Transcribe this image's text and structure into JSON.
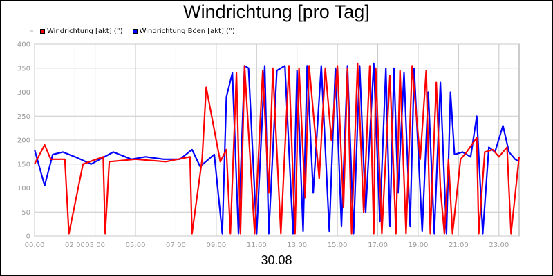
{
  "chart_data": {
    "type": "line",
    "title": "Windrichtung [pro Tag]",
    "xlabel": "30.08",
    "x_ticks": [
      "00:00",
      "02:00",
      "03:00",
      "05:00",
      "07:00",
      "09:00",
      "11:00",
      "13:00",
      "15:00",
      "17:00",
      "19:00",
      "21:00",
      "23:00"
    ],
    "y_ticks": [
      0,
      50,
      100,
      150,
      200,
      250,
      300,
      350,
      400
    ],
    "ylim": [
      0,
      400
    ],
    "xlim_hours": [
      0,
      24
    ],
    "grid": true,
    "legend_position": "top-left",
    "series": [
      {
        "name": "Windrichtung [akt] (°)",
        "color": "#ff0000",
        "x": [
          0,
          0.5,
          0.8,
          1.5,
          1.7,
          2.4,
          3.4,
          3.5,
          3.7,
          5.0,
          6.5,
          7.7,
          7.8,
          8.3,
          8.5,
          9.2,
          9.5,
          9.7,
          10.0,
          10.2,
          10.4,
          10.9,
          11.3,
          11.6,
          11.8,
          12.2,
          12.6,
          12.9,
          13.1,
          13.4,
          13.6,
          14.1,
          14.4,
          14.7,
          15.0,
          15.3,
          15.5,
          15.7,
          16.0,
          16.3,
          16.6,
          16.8,
          16.9,
          17.2,
          17.6,
          17.9,
          18.1,
          18.4,
          18.7,
          19.1,
          19.4,
          19.6,
          19.9,
          20.1,
          20.3,
          20.5,
          20.7,
          21.1,
          21.4,
          21.9,
          22.0,
          22.3,
          22.7,
          23.0,
          23.4,
          23.6,
          24
        ],
        "y": [
          150,
          190,
          160,
          160,
          5,
          150,
          165,
          5,
          155,
          160,
          155,
          165,
          5,
          160,
          310,
          155,
          180,
          5,
          340,
          5,
          355,
          5,
          345,
          90,
          350,
          5,
          355,
          5,
          350,
          80,
          355,
          120,
          350,
          200,
          355,
          60,
          350,
          5,
          360,
          50,
          355,
          5,
          350,
          5,
          335,
          5,
          345,
          5,
          355,
          160,
          345,
          5,
          320,
          100,
          5,
          160,
          5,
          160,
          175,
          205,
          5,
          175,
          180,
          165,
          185,
          5,
          165
        ]
      },
      {
        "name": "Windrichtung Böen [akt] (°)",
        "color": "#0000ff",
        "x": [
          0,
          0.5,
          0.9,
          1.4,
          2.0,
          2.8,
          3.9,
          4.8,
          5.5,
          6.4,
          7.2,
          7.8,
          8.2,
          8.9,
          9.3,
          9.5,
          9.8,
          10.1,
          10.4,
          10.6,
          11.0,
          11.4,
          11.6,
          12.0,
          12.4,
          12.8,
          13.0,
          13.3,
          13.5,
          13.8,
          14.2,
          14.6,
          14.9,
          15.2,
          15.5,
          15.8,
          16.1,
          16.4,
          16.8,
          17.1,
          17.4,
          17.6,
          17.8,
          18.0,
          18.3,
          18.6,
          18.8,
          19.2,
          19.5,
          19.8,
          20.1,
          20.4,
          20.6,
          20.8,
          21.2,
          21.6,
          21.9,
          22.2,
          22.5,
          22.8,
          23.2,
          23.5,
          23.8,
          24
        ],
        "y": [
          180,
          105,
          170,
          175,
          165,
          150,
          175,
          160,
          165,
          160,
          160,
          180,
          145,
          170,
          5,
          290,
          340,
          5,
          355,
          350,
          5,
          355,
          5,
          345,
          355,
          5,
          345,
          10,
          355,
          90,
          355,
          10,
          350,
          20,
          355,
          5,
          355,
          50,
          360,
          30,
          350,
          20,
          350,
          90,
          340,
          20,
          350,
          10,
          300,
          5,
          320,
          5,
          300,
          170,
          175,
          165,
          250,
          5,
          185,
          175,
          230,
          175,
          160,
          155
        ]
      }
    ]
  }
}
